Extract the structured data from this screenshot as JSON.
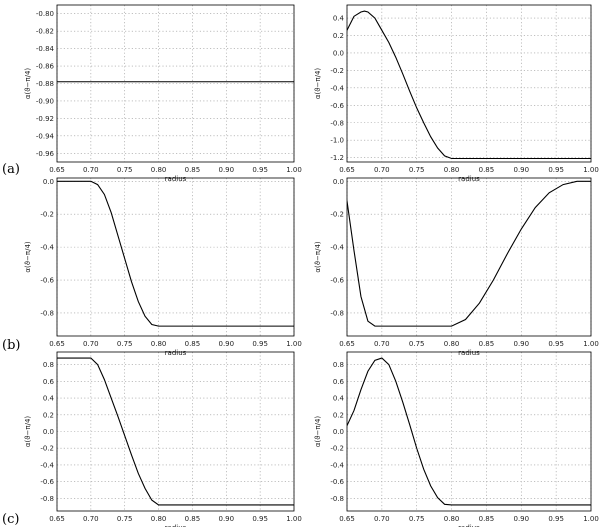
{
  "row_labels": [
    "(a)",
    "(b)",
    "(c)"
  ],
  "chart_data": [
    {
      "type": "line",
      "row": 0,
      "col": 0,
      "xlabel": "radius",
      "ylabel": "α(ϑ−π/4)",
      "xlim": [
        0.65,
        1.0
      ],
      "ylim": [
        -0.97,
        -0.79
      ],
      "xticks": [
        "0.65",
        "0.70",
        "0.75",
        "0.80",
        "0.85",
        "0.90",
        "0.95",
        "1.00"
      ],
      "yticks": [
        "-0.80",
        "-0.82",
        "-0.84",
        "-0.86",
        "-0.88",
        "-0.90",
        "-0.92",
        "-0.94",
        "-0.96"
      ],
      "x": [
        0.64,
        1.0
      ],
      "y": [
        -0.878,
        -0.878
      ]
    },
    {
      "type": "line",
      "row": 0,
      "col": 1,
      "xlabel": "radius",
      "ylabel": "α(ϑ−π/4)",
      "xlim": [
        0.65,
        1.0
      ],
      "ylim": [
        -1.25,
        0.55
      ],
      "xticks": [
        "0.65",
        "0.70",
        "0.75",
        "0.80",
        "0.85",
        "0.90",
        "0.95",
        "1.00"
      ],
      "yticks": [
        "0.4",
        "0.2",
        "0.0",
        "-0.2",
        "-0.4",
        "-0.6",
        "-0.8",
        "-1.0",
        "-1.2"
      ],
      "x": [
        0.64,
        0.65,
        0.66,
        0.67,
        0.675,
        0.68,
        0.69,
        0.7,
        0.71,
        0.72,
        0.73,
        0.74,
        0.75,
        0.76,
        0.77,
        0.78,
        0.79,
        0.8,
        1.0
      ],
      "y": [
        0.0,
        0.26,
        0.42,
        0.47,
        0.48,
        0.47,
        0.4,
        0.26,
        0.12,
        -0.05,
        -0.24,
        -0.44,
        -0.63,
        -0.8,
        -0.96,
        -1.09,
        -1.18,
        -1.21,
        -1.21
      ]
    },
    {
      "type": "line",
      "row": 1,
      "col": 0,
      "xlabel": "radius",
      "ylabel": "α(ϑ−π/4)",
      "xlim": [
        0.65,
        1.0
      ],
      "ylim": [
        -0.94,
        0.02
      ],
      "xticks": [
        "0.65",
        "0.70",
        "0.75",
        "0.80",
        "0.85",
        "0.90",
        "0.95",
        "1.00"
      ],
      "yticks": [
        "0.0",
        "-0.2",
        "-0.4",
        "-0.6",
        "-0.8"
      ],
      "x": [
        0.64,
        0.7,
        0.71,
        0.72,
        0.73,
        0.74,
        0.75,
        0.76,
        0.77,
        0.78,
        0.79,
        0.8,
        1.0
      ],
      "y": [
        0.0,
        0.0,
        -0.02,
        -0.08,
        -0.19,
        -0.33,
        -0.47,
        -0.61,
        -0.73,
        -0.82,
        -0.87,
        -0.88,
        -0.88
      ]
    },
    {
      "type": "line",
      "row": 1,
      "col": 1,
      "xlabel": "radius",
      "ylabel": "α(ϑ−π/4)",
      "xlim": [
        0.65,
        1.0
      ],
      "ylim": [
        -0.94,
        0.02
      ],
      "xticks": [
        "0.65",
        "0.70",
        "0.75",
        "0.80",
        "0.85",
        "0.90",
        "0.95",
        "1.00"
      ],
      "yticks": [
        "0.0",
        "-0.2",
        "-0.4",
        "-0.6",
        "-0.8"
      ],
      "x": [
        0.64,
        0.65,
        0.66,
        0.67,
        0.68,
        0.69,
        0.7,
        0.8,
        0.82,
        0.84,
        0.86,
        0.88,
        0.9,
        0.92,
        0.94,
        0.96,
        0.98,
        1.0
      ],
      "y": [
        0.0,
        -0.12,
        -0.42,
        -0.7,
        -0.85,
        -0.88,
        -0.88,
        -0.88,
        -0.84,
        -0.74,
        -0.6,
        -0.44,
        -0.29,
        -0.16,
        -0.07,
        -0.02,
        0.0,
        0.0
      ]
    },
    {
      "type": "line",
      "row": 2,
      "col": 0,
      "xlabel": "radius",
      "ylabel": "α(ϑ−π/4)",
      "xlim": [
        0.65,
        1.0
      ],
      "ylim": [
        -0.95,
        0.95
      ],
      "xticks": [
        "0.65",
        "0.70",
        "0.75",
        "0.80",
        "0.85",
        "0.90",
        "0.95",
        "1.00"
      ],
      "yticks": [
        "0.8",
        "0.6",
        "0.4",
        "0.2",
        "0.0",
        "-0.2",
        "-0.4",
        "-0.6",
        "-0.8"
      ],
      "x": [
        0.64,
        0.7,
        0.71,
        0.72,
        0.73,
        0.74,
        0.75,
        0.76,
        0.77,
        0.78,
        0.79,
        0.8,
        1.0
      ],
      "y": [
        0.878,
        0.878,
        0.8,
        0.62,
        0.4,
        0.18,
        -0.05,
        -0.28,
        -0.5,
        -0.68,
        -0.82,
        -0.878,
        -0.878
      ]
    },
    {
      "type": "line",
      "row": 2,
      "col": 1,
      "xlabel": "radius",
      "ylabel": "α(ϑ−π/4)",
      "xlim": [
        0.65,
        1.0
      ],
      "ylim": [
        -0.95,
        0.95
      ],
      "xticks": [
        "0.65",
        "0.70",
        "0.75",
        "0.80",
        "0.85",
        "0.90",
        "0.95",
        "1.00"
      ],
      "yticks": [
        "0.8",
        "0.6",
        "0.4",
        "0.2",
        "0.0",
        "-0.2",
        "-0.4",
        "-0.6",
        "-0.8"
      ],
      "x": [
        0.64,
        0.65,
        0.66,
        0.67,
        0.68,
        0.69,
        0.7,
        0.71,
        0.72,
        0.73,
        0.74,
        0.75,
        0.76,
        0.77,
        0.78,
        0.79,
        0.8,
        1.0
      ],
      "y": [
        0.0,
        0.07,
        0.25,
        0.5,
        0.72,
        0.85,
        0.878,
        0.8,
        0.6,
        0.35,
        0.08,
        -0.2,
        -0.45,
        -0.65,
        -0.79,
        -0.87,
        -0.878,
        -0.878
      ]
    }
  ]
}
